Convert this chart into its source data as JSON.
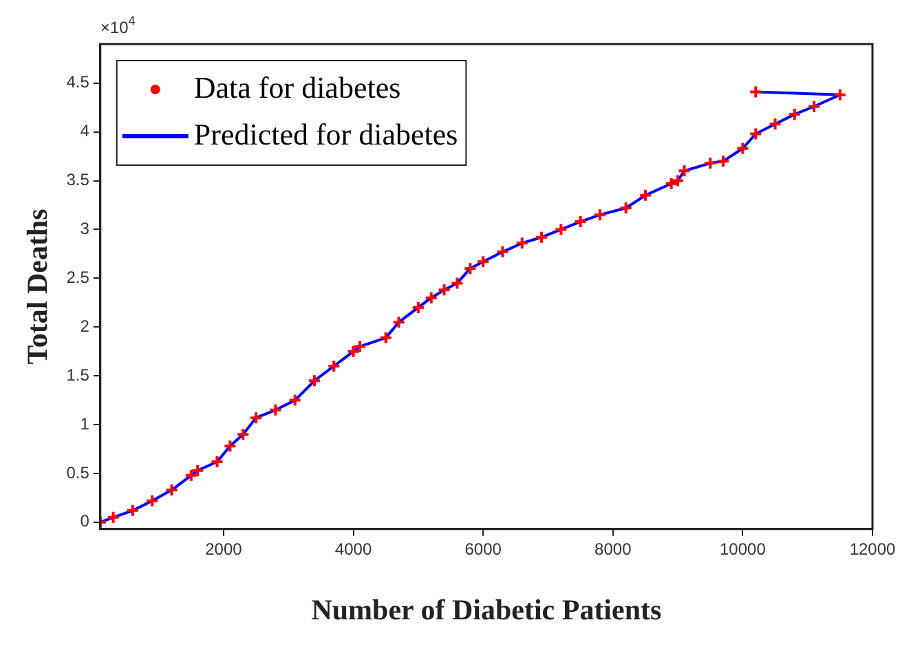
{
  "chart_data": {
    "type": "scatter",
    "xlabel": "Number of Diabetic Patients",
    "ylabel": "Total Deaths",
    "annotations": [
      "×10$^{4}$"
    ],
    "xlim": [
      100,
      12000
    ],
    "xticks": [
      2000,
      4000,
      6000,
      8000,
      10000,
      12000
    ],
    "ylim": [
      -0.07,
      4.9
    ],
    "yticks": [
      0,
      0.5,
      1,
      1.5,
      2,
      2.5,
      3,
      3.5,
      4,
      4.5
    ],
    "grid": false,
    "legend": "top left",
    "series": [
      {
        "name": "Data for diabetes",
        "type": "scatter",
        "marker": "cross",
        "color": "#ff0000",
        "x": [
          100,
          300,
          600,
          900,
          1200,
          1500,
          1600,
          1900,
          2100,
          2300,
          2500,
          2800,
          3100,
          3400,
          3700,
          4000,
          4100,
          4500,
          4700,
          5000,
          5200,
          5400,
          5600,
          5800,
          6000,
          6300,
          6600,
          6900,
          7200,
          7500,
          7800,
          8200,
          8500,
          8900,
          9000,
          9100,
          9500,
          9700,
          10000,
          10200,
          10500,
          10800,
          11100,
          11500,
          10200
        ],
        "values": [
          0,
          0.05,
          0.12,
          0.22,
          0.33,
          0.48,
          0.53,
          0.62,
          0.78,
          0.9,
          1.07,
          1.15,
          1.25,
          1.45,
          1.6,
          1.75,
          1.8,
          1.89,
          2.05,
          2.2,
          2.3,
          2.38,
          2.45,
          2.6,
          2.67,
          2.77,
          2.86,
          2.92,
          3,
          3.08,
          3.15,
          3.22,
          3.35,
          3.47,
          3.5,
          3.6,
          3.68,
          3.7,
          3.83,
          3.98,
          4.08,
          4.18,
          4.26,
          4.38,
          4.41
        ]
      },
      {
        "name": "Predicted for diabetes",
        "type": "line",
        "marker": "none",
        "line_style": "solid",
        "color": "#0000ff",
        "x": [
          100,
          300,
          600,
          900,
          1200,
          1500,
          1600,
          1900,
          2100,
          2300,
          2500,
          2800,
          3100,
          3400,
          3700,
          4000,
          4100,
          4500,
          4700,
          5000,
          5200,
          5400,
          5600,
          5800,
          6000,
          6300,
          6600,
          6900,
          7200,
          7500,
          7800,
          8200,
          8500,
          8900,
          9000,
          9100,
          9500,
          9700,
          10000,
          10200,
          10500,
          10800,
          11100,
          11500,
          10200
        ],
        "values": [
          0,
          0.05,
          0.12,
          0.22,
          0.33,
          0.48,
          0.53,
          0.62,
          0.78,
          0.9,
          1.07,
          1.15,
          1.25,
          1.45,
          1.6,
          1.75,
          1.8,
          1.89,
          2.05,
          2.2,
          2.3,
          2.38,
          2.45,
          2.6,
          2.67,
          2.77,
          2.86,
          2.92,
          3,
          3.08,
          3.15,
          3.22,
          3.35,
          3.47,
          3.5,
          3.6,
          3.68,
          3.7,
          3.83,
          3.98,
          4.08,
          4.18,
          4.26,
          4.38,
          4.41
        ]
      }
    ]
  }
}
